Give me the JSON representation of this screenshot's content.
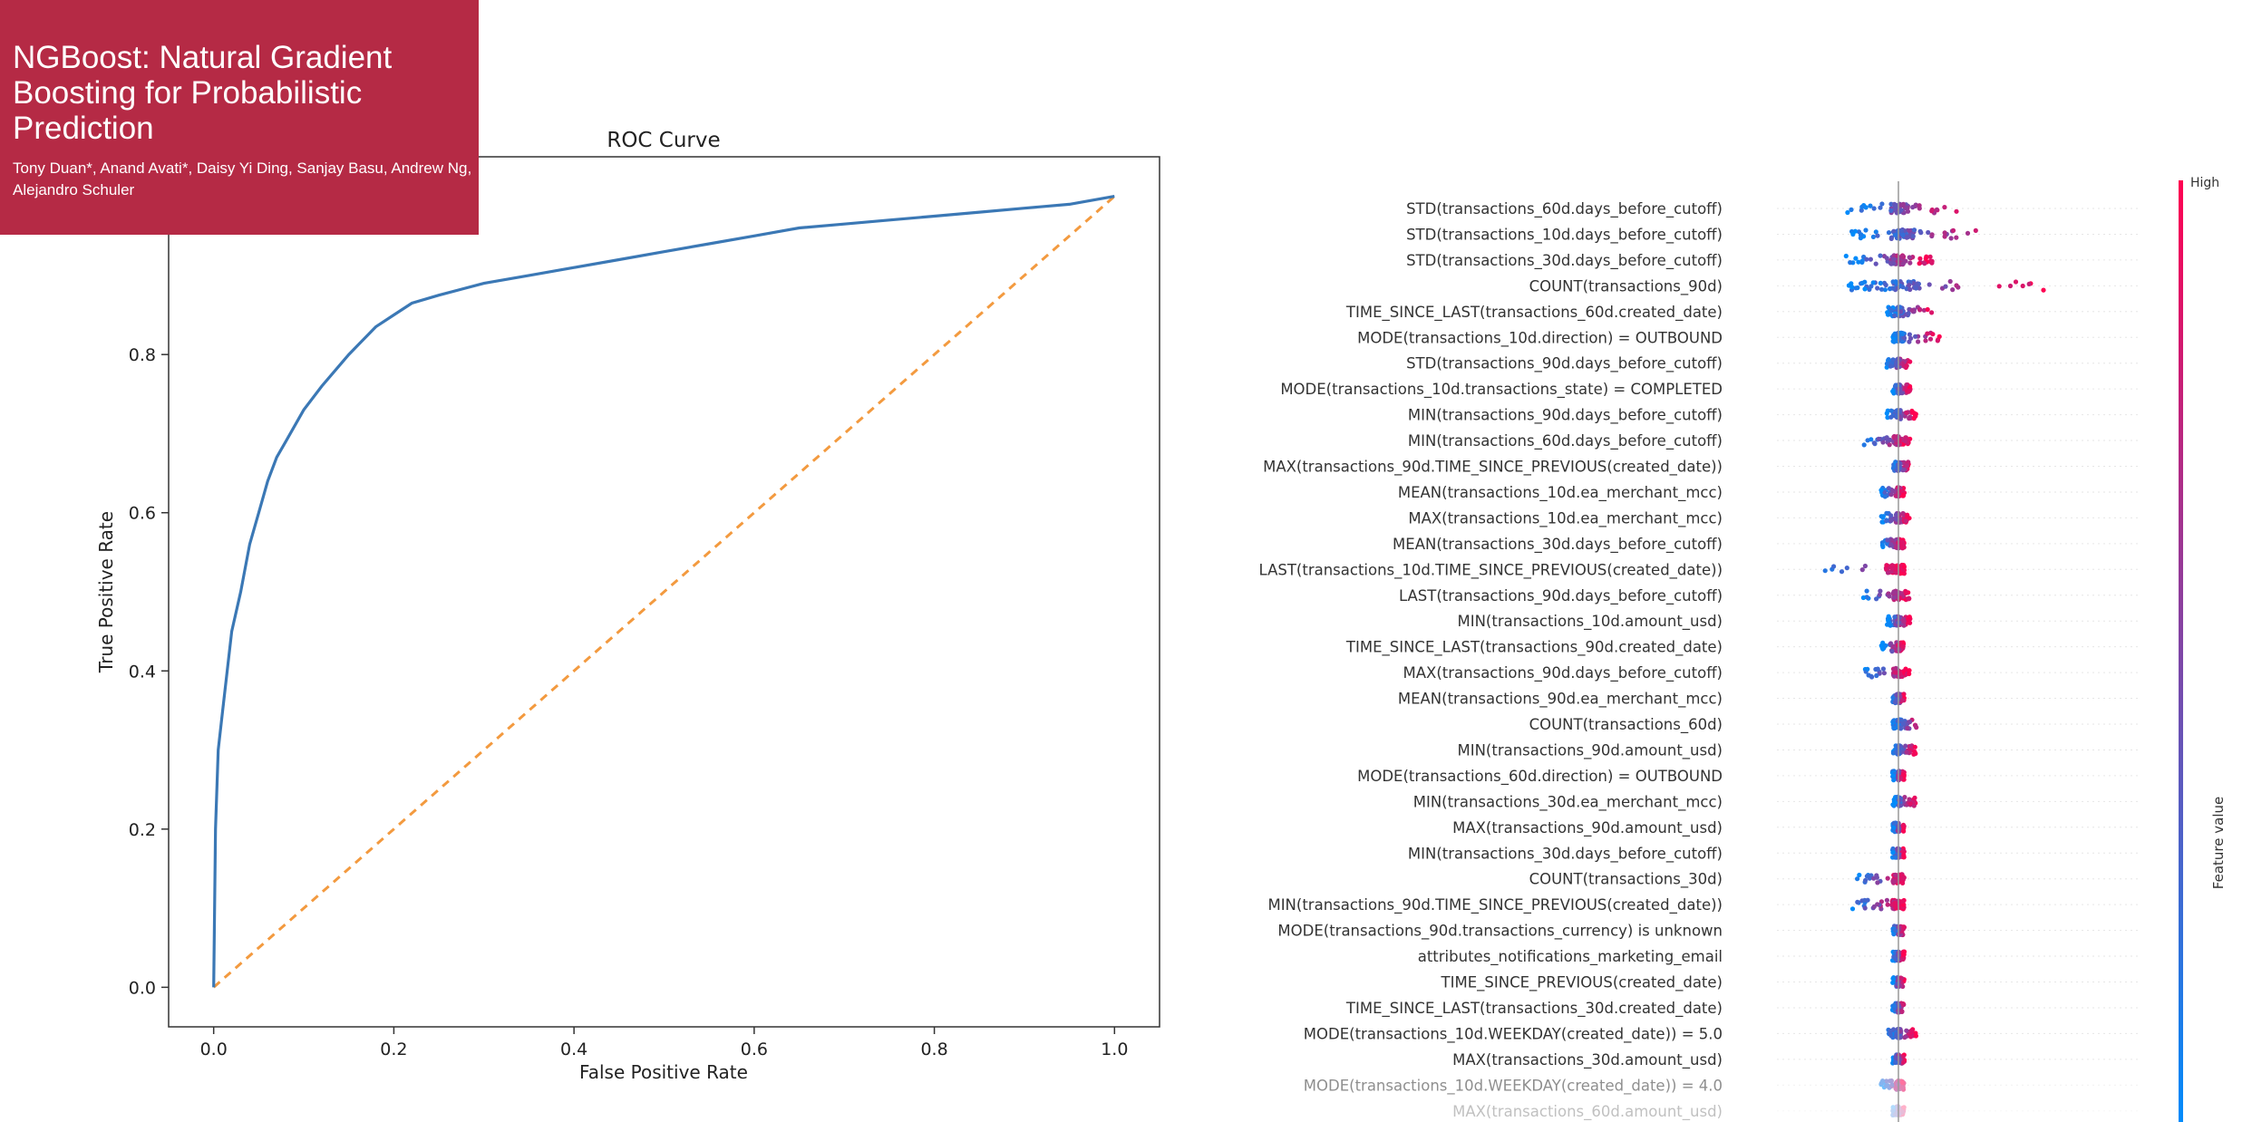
{
  "banner": {
    "title": "NGBoost: Natural Gradient Boosting for Probabilistic Prediction",
    "authors": "Tony Duan*, Anand Avati*, Daisy Yi Ding, Sanjay Basu, Andrew Ng, Alejandro Schuler"
  },
  "colors": {
    "banner": "#b52a45",
    "roc_line": "#3b78b5",
    "diagonal": "#f39a3f",
    "feature_high": "#ff0051",
    "feature_low": "#008bfb"
  },
  "chart_data": [
    {
      "type": "line",
      "title": "ROC Curve",
      "xlabel": "False Positive Rate",
      "ylabel": "True Positive Rate",
      "xlim": [
        -0.05,
        1.05
      ],
      "ylim": [
        -0.05,
        1.05
      ],
      "xticks": [
        "0.0",
        "0.2",
        "0.4",
        "0.6",
        "0.8",
        "1.0"
      ],
      "yticks": [
        "0.0",
        "0.2",
        "0.4",
        "0.6",
        "0.8"
      ],
      "series": [
        {
          "x": [
            0,
            0.002,
            0.005,
            0.01,
            0.015,
            0.02,
            0.03,
            0.04,
            0.05,
            0.06,
            0.07,
            0.08,
            0.1,
            0.12,
            0.15,
            0.18,
            0.2,
            0.22,
            0.25,
            0.3,
            0.35,
            0.4,
            0.45,
            0.5,
            0.55,
            0.6,
            0.65,
            0.7,
            0.75,
            0.8,
            0.85,
            0.9,
            0.95,
            1.0
          ],
          "y": [
            0,
            0.2,
            0.3,
            0.35,
            0.4,
            0.45,
            0.5,
            0.56,
            0.6,
            0.64,
            0.67,
            0.69,
            0.73,
            0.76,
            0.8,
            0.835,
            0.85,
            0.865,
            0.875,
            0.89,
            0.9,
            0.91,
            0.92,
            0.93,
            0.94,
            0.95,
            0.96,
            0.965,
            0.97,
            0.975,
            0.98,
            0.985,
            0.99,
            1.0
          ]
        },
        {
          "x": [
            0,
            1
          ],
          "y": [
            0,
            1
          ]
        }
      ],
      "grid": false
    },
    {
      "type": "scatter",
      "colorbar": {
        "high": "High",
        "label": "Feature value"
      },
      "features": [
        "STD(transactions_60d.days_before_cutoff)",
        "STD(transactions_10d.days_before_cutoff)",
        "STD(transactions_30d.days_before_cutoff)",
        "COUNT(transactions_90d)",
        "TIME_SINCE_LAST(transactions_60d.created_date)",
        "MODE(transactions_10d.direction) = OUTBOUND",
        "STD(transactions_90d.days_before_cutoff)",
        "MODE(transactions_10d.transactions_state) = COMPLETED",
        "MIN(transactions_90d.days_before_cutoff)",
        "MIN(transactions_60d.days_before_cutoff)",
        "MAX(transactions_90d.TIME_SINCE_PREVIOUS(created_date))",
        "MEAN(transactions_10d.ea_merchant_mcc)",
        "MAX(transactions_10d.ea_merchant_mcc)",
        "MEAN(transactions_30d.days_before_cutoff)",
        "LAST(transactions_10d.TIME_SINCE_PREVIOUS(created_date))",
        "LAST(transactions_90d.days_before_cutoff)",
        "MIN(transactions_10d.amount_usd)",
        "TIME_SINCE_LAST(transactions_90d.created_date)",
        "MAX(transactions_90d.days_before_cutoff)",
        "MEAN(transactions_90d.ea_merchant_mcc)",
        "COUNT(transactions_60d)",
        "MIN(transactions_90d.amount_usd)",
        "MODE(transactions_60d.direction) = OUTBOUND",
        "MIN(transactions_30d.ea_merchant_mcc)",
        "MAX(transactions_90d.amount_usd)",
        "MIN(transactions_30d.days_before_cutoff)",
        "COUNT(transactions_30d)",
        "MIN(transactions_90d.TIME_SINCE_PREVIOUS(created_date))",
        "MODE(transactions_90d.transactions_currency) is unknown",
        "attributes_notifications_marketing_email",
        "TIME_SINCE_PREVIOUS(created_date)",
        "TIME_SINCE_LAST(transactions_30d.created_date)",
        "MODE(transactions_10d.WEEKDAY(created_date)) = 5.0",
        "MAX(transactions_30d.amount_usd)",
        "MODE(transactions_10d.WEEKDAY(created_date)) = 4.0",
        "MAX(transactions_60d.amount_usd)"
      ],
      "spread": [
        [
          -0.09,
          0.11
        ],
        [
          -0.08,
          0.18
        ],
        [
          -0.09,
          0.06
        ],
        [
          -0.1,
          0.26
        ],
        [
          -0.02,
          0.06
        ],
        [
          -0.01,
          0.07
        ],
        [
          -0.02,
          0.02
        ],
        [
          -0.01,
          0.02
        ],
        [
          -0.02,
          0.03
        ],
        [
          -0.06,
          0.02
        ],
        [
          -0.01,
          0.02
        ],
        [
          -0.03,
          0.01
        ],
        [
          -0.03,
          0.02
        ],
        [
          -0.03,
          0.01
        ],
        [
          -0.14,
          0.01
        ],
        [
          -0.06,
          0.02
        ],
        [
          -0.02,
          0.02
        ],
        [
          -0.03,
          0.01
        ],
        [
          -0.06,
          0.02
        ],
        [
          -0.01,
          0.01
        ],
        [
          -0.01,
          0.04
        ],
        [
          -0.01,
          0.03
        ],
        [
          -0.01,
          0.01
        ],
        [
          -0.01,
          0.03
        ],
        [
          -0.01,
          0.01
        ],
        [
          -0.01,
          0.01
        ],
        [
          -0.07,
          0.01
        ],
        [
          -0.08,
          0.01
        ],
        [
          -0.01,
          0.01
        ],
        [
          -0.01,
          0.01
        ],
        [
          -0.01,
          0.01
        ],
        [
          -0.01,
          0.01
        ],
        [
          -0.02,
          0.03
        ],
        [
          -0.01,
          0.01
        ],
        [
          -0.03,
          0.01
        ],
        [
          -0.01,
          0.01
        ]
      ]
    }
  ]
}
